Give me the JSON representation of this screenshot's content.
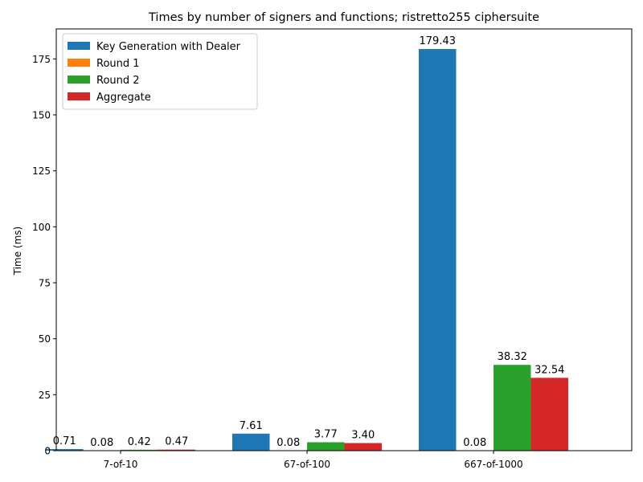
{
  "chart_data": {
    "type": "bar",
    "title": "Times by number of signers and functions; ristretto255 ciphersuite",
    "xlabel": "",
    "ylabel": "Time (ms)",
    "ylim": [
      0,
      188.4
    ],
    "yticks": [
      0,
      25,
      50,
      75,
      100,
      125,
      150,
      175
    ],
    "categories": [
      "7-of-10",
      "67-of-100",
      "667-of-1000"
    ],
    "series": [
      {
        "name": "Key Generation with Dealer",
        "color": "#1f77b4",
        "values": [
          0.71,
          7.61,
          179.43
        ],
        "labels": [
          "0.71",
          "7.61",
          "179.43"
        ]
      },
      {
        "name": "Round 1",
        "color": "#ff7f0e",
        "values": [
          0.08,
          0.08,
          0.08
        ],
        "labels": [
          "0.08",
          "0.08",
          "0.08"
        ]
      },
      {
        "name": "Round 2",
        "color": "#2ca02c",
        "values": [
          0.42,
          3.77,
          38.32
        ],
        "labels": [
          "0.42",
          "3.77",
          "38.32"
        ]
      },
      {
        "name": "Aggregate",
        "color": "#d62728",
        "values": [
          0.47,
          3.4,
          32.54
        ],
        "labels": [
          "0.47",
          "3.40",
          "32.54"
        ]
      }
    ],
    "legend_position": "top-left",
    "grid": false
  }
}
